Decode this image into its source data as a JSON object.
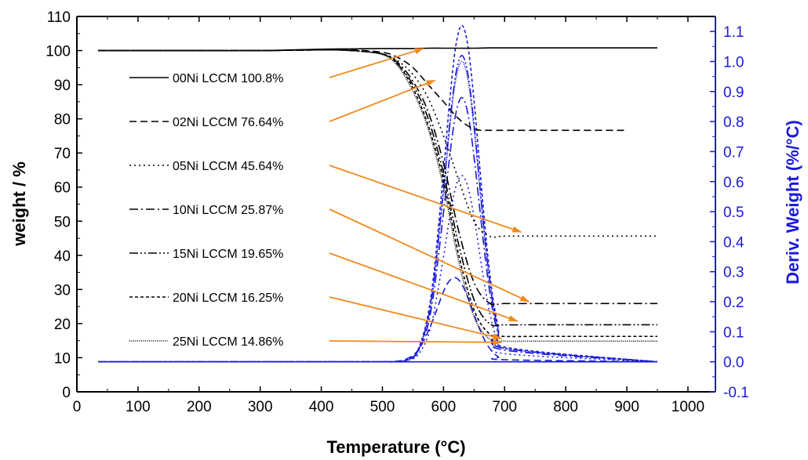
{
  "chart_data": {
    "type": "line",
    "xlabel": "Temperature (°C)",
    "xlabel_main": "Temperature (",
    "xlabel_sup": "o",
    "xlabel_end": "C)",
    "ylabel": "weight / %",
    "y2label": "Deriv. Weight (%/°C)",
    "y2label_main": "Deriv. Weight (%/",
    "y2label_sup": "o",
    "y2label_end": "C)",
    "xlim": [
      0,
      1045
    ],
    "ylim": [
      0,
      110
    ],
    "y2lim": [
      -0.1,
      1.15
    ],
    "xticks": [
      0,
      100,
      200,
      300,
      400,
      500,
      600,
      700,
      800,
      900,
      1000
    ],
    "yticks": [
      0,
      10,
      20,
      30,
      40,
      50,
      60,
      70,
      80,
      90,
      100,
      110
    ],
    "y2ticks": [
      "-0.1",
      "0.0",
      "0.1",
      "0.2",
      "0.3",
      "0.4",
      "0.5",
      "0.6",
      "0.7",
      "0.8",
      "0.9",
      "1.0",
      "1.1"
    ],
    "grid": false,
    "legend_placement": "left",
    "colors": {
      "tg": "#000000",
      "dtg": "#1a1adb",
      "arrow": "#f08a1c",
      "right_axis": "#1a1adb"
    },
    "tg_x": [
      35,
      100,
      200,
      300,
      400,
      450,
      500,
      525,
      550,
      575,
      600,
      625,
      650,
      675,
      700,
      750,
      800,
      900,
      950
    ],
    "tg_series": [
      {
        "name": "00Ni LCCM 100.8%",
        "style": "solid",
        "values": [
          100,
          100,
          100,
          100,
          100.4,
          100.5,
          100.6,
          100.6,
          100.6,
          100.7,
          100.7,
          100.7,
          100.7,
          100.8,
          100.8,
          100.8,
          100.8,
          100.8,
          100.8
        ],
        "arrow_to": [
          567,
          100.6
        ]
      },
      {
        "name": "02Ni LCCM 76.64%",
        "style": "dashed",
        "values": [
          100,
          100,
          100,
          100,
          100.2,
          100.2,
          99.5,
          98,
          95,
          90,
          85,
          80,
          77,
          76.64,
          76.64,
          76.64,
          76.64,
          76.64,
          null
        ],
        "arrow_to": [
          586,
          91.3
        ]
      },
      {
        "name": "05Ni LCCM 45.64%",
        "style": "dotted",
        "values": [
          100,
          100,
          100,
          100,
          100.2,
          100,
          99,
          97,
          93,
          86,
          75,
          62,
          50,
          45.64,
          45.64,
          45.64,
          45.64,
          45.64,
          45.64
        ],
        "arrow_to": [
          727,
          46.8
        ]
      },
      {
        "name": "10Ni LCCM 25.87%",
        "style": "dash-dot",
        "values": [
          100,
          100,
          100,
          100,
          100.2,
          100,
          99,
          96.5,
          91,
          82,
          67,
          47,
          32,
          26,
          25.87,
          25.87,
          25.87,
          25.87,
          25.87
        ],
        "arrow_to": [
          740,
          26.4
        ]
      },
      {
        "name": "15Ni LCCM 19.65%",
        "style": "dash-dot-dot",
        "values": [
          100,
          100,
          100,
          100,
          100.2,
          100,
          99,
          96,
          90,
          80,
          64,
          43,
          27,
          20,
          19.65,
          19.65,
          19.65,
          19.65,
          19.65
        ],
        "arrow_to": [
          721,
          20.7
        ]
      },
      {
        "name": "20Ni LCCM 16.25%",
        "style": "short-dash",
        "values": [
          100,
          100,
          100,
          100,
          100.2,
          100,
          99,
          96,
          89,
          78,
          62,
          40,
          24,
          17,
          16.25,
          16.25,
          16.25,
          16.25,
          16.25
        ],
        "arrow_to": [
          695,
          15.6
        ]
      },
      {
        "name": "25Ni LCCM 14.86%",
        "style": "short-dot",
        "values": [
          100,
          100,
          100,
          100,
          100.2,
          100,
          98.8,
          95.5,
          88,
          77,
          60,
          38,
          22,
          15.5,
          14.86,
          14.86,
          14.86,
          14.86,
          14.86
        ],
        "arrow_to": [
          695,
          14.5
        ]
      }
    ],
    "dtg_x": [
      35,
      400,
      450,
      480,
      500,
      520,
      540,
      560,
      580,
      600,
      610,
      620,
      630,
      640,
      650,
      660,
      670,
      680,
      690,
      700,
      950
    ],
    "dtg_series": [
      {
        "style": "solid",
        "values": [
          0,
          0,
          0,
          0,
          0,
          0,
          0,
          0,
          0,
          0,
          0,
          0,
          0,
          0,
          0,
          0,
          0,
          0,
          0,
          0,
          0
        ]
      },
      {
        "style": "dashed",
        "values": [
          0,
          0,
          0,
          0,
          0,
          0.001,
          0.01,
          0.043,
          0.126,
          0.234,
          0.27,
          0.28,
          0.258,
          0.214,
          0.158,
          0.105,
          0.062,
          0.033,
          0.016,
          0.007,
          0
        ]
      },
      {
        "style": "dotted",
        "values": [
          0,
          0,
          0,
          0,
          0,
          0,
          0.004,
          0.027,
          0.124,
          0.35,
          0.481,
          0.582,
          0.62,
          0.582,
          0.481,
          0.35,
          0.223,
          0.124,
          0.062,
          0.027,
          0
        ]
      },
      {
        "style": "dash-dot",
        "values": [
          0,
          0,
          0,
          0,
          0,
          0,
          0.005,
          0.039,
          0.176,
          0.497,
          0.682,
          0.825,
          0.88,
          0.825,
          0.682,
          0.497,
          0.317,
          0.176,
          0.088,
          0.039,
          0
        ]
      },
      {
        "style": "dash-dot-dot",
        "values": [
          0,
          0,
          0,
          0,
          0,
          0.001,
          0.006,
          0.045,
          0.204,
          0.576,
          0.791,
          0.957,
          1.02,
          0.957,
          0.791,
          0.576,
          0.367,
          0.204,
          0.102,
          0.045,
          0
        ]
      },
      {
        "style": "short-dash",
        "values": [
          0,
          0,
          0,
          0,
          0,
          0.001,
          0.007,
          0.049,
          0.224,
          0.633,
          0.868,
          1.051,
          1.12,
          1.051,
          0.868,
          0.633,
          0.403,
          0.224,
          0.112,
          0.049,
          0
        ]
      },
      {
        "style": "short-dot",
        "values": [
          0,
          0,
          0,
          0,
          0,
          0.001,
          0.006,
          0.044,
          0.2,
          0.565,
          0.775,
          0.938,
          1.0,
          0.938,
          0.775,
          0.565,
          0.36,
          0.2,
          0.1,
          0.044,
          0
        ]
      }
    ]
  }
}
